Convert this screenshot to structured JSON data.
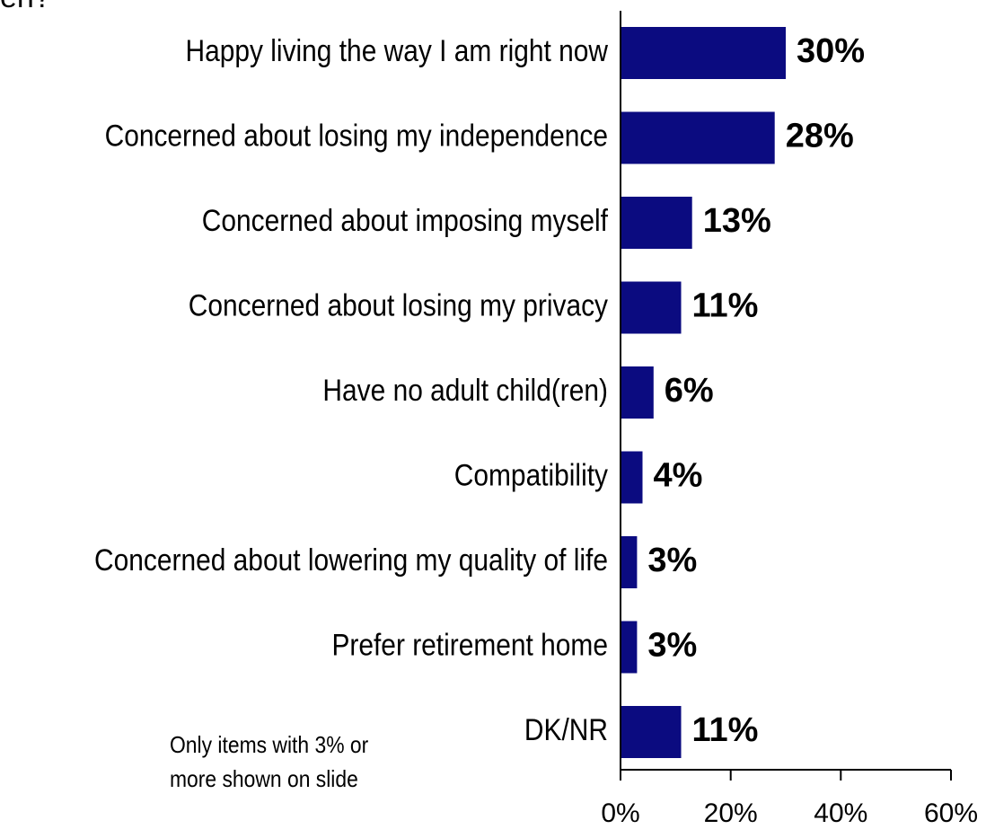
{
  "page": {
    "title_fragment": "en?",
    "footnote_lines": [
      "Only items with 3% or",
      "more shown on slide"
    ]
  },
  "chart_data": {
    "type": "bar",
    "orientation": "horizontal",
    "categories": [
      "Happy living the way I am right now",
      "Concerned about losing my independence",
      "Concerned about imposing myself",
      "Concerned about losing my privacy",
      "Have no adult child(ren)",
      "Compatibility",
      "Concerned about lowering my quality of life",
      "Prefer retirement home",
      "DK/NR"
    ],
    "values": [
      30,
      28,
      13,
      11,
      6,
      4,
      3,
      3,
      11
    ],
    "value_labels": [
      "30%",
      "28%",
      "13%",
      "11%",
      "6%",
      "4%",
      "3%",
      "3%",
      "11%"
    ],
    "xlim": [
      0,
      60
    ],
    "x_ticks": [
      0,
      20,
      40,
      60
    ],
    "x_tick_labels": [
      "0%",
      "20%",
      "40%",
      "60%"
    ],
    "bar_color": "#0b0b80",
    "grid": false
  }
}
